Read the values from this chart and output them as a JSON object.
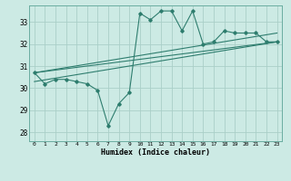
{
  "xlabel": "Humidex (Indice chaleur)",
  "bg_color": "#cceae4",
  "grid_color": "#aacfc8",
  "line_color": "#2e7d6e",
  "xlim": [
    -0.5,
    23.5
  ],
  "ylim": [
    27.6,
    33.75
  ],
  "yticks": [
    28,
    29,
    30,
    31,
    32,
    33
  ],
  "xticks": [
    0,
    1,
    2,
    3,
    4,
    5,
    6,
    7,
    8,
    9,
    10,
    11,
    12,
    13,
    14,
    15,
    16,
    17,
    18,
    19,
    20,
    21,
    22,
    23
  ],
  "series1_x": [
    0,
    1,
    2,
    3,
    4,
    5,
    6,
    7,
    8,
    9,
    10,
    11,
    12,
    13,
    14,
    15,
    16,
    17,
    18,
    19,
    20,
    21,
    22,
    23
  ],
  "series1_y": [
    30.7,
    30.2,
    30.4,
    30.4,
    30.3,
    30.2,
    29.9,
    28.3,
    29.3,
    29.8,
    33.4,
    33.1,
    33.5,
    33.5,
    32.6,
    33.5,
    32.0,
    32.1,
    32.6,
    32.5,
    32.5,
    32.5,
    32.1,
    32.1
  ],
  "trend1_x": [
    0,
    23
  ],
  "trend1_y": [
    30.7,
    32.1
  ],
  "trend2_x": [
    0,
    23
  ],
  "trend2_y": [
    30.3,
    32.1
  ],
  "trend3_x": [
    0,
    23
  ],
  "trend3_y": [
    30.7,
    32.5
  ]
}
